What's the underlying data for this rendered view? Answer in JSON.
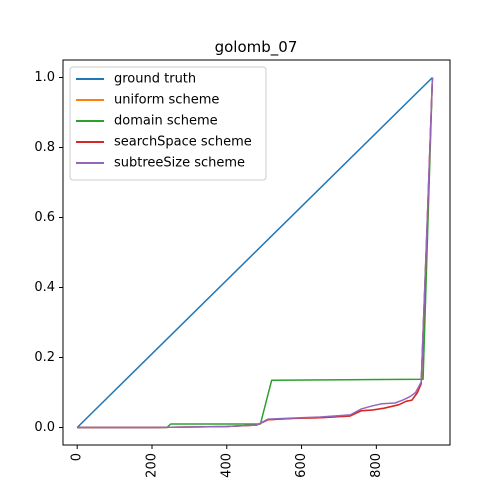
{
  "chart_data": {
    "type": "line",
    "title": "golomb_07",
    "xlabel": "",
    "ylabel": "",
    "xlim": [
      -38,
      997
    ],
    "ylim": [
      -0.05,
      1.05
    ],
    "xticks": [
      0,
      200,
      400,
      600,
      800
    ],
    "xtick_labels": [
      "0",
      "200",
      "400",
      "600",
      "800"
    ],
    "yticks": [
      0.0,
      0.2,
      0.4,
      0.6,
      0.8,
      1.0
    ],
    "ytick_labels": [
      "0.0",
      "0.2",
      "0.4",
      "0.6",
      "0.8",
      "1.0"
    ],
    "grid": false,
    "legend": "top-left",
    "series": [
      {
        "name": "ground truth",
        "color": "#1f77b4",
        "x": [
          0,
          950
        ],
        "y": [
          0.0,
          1.0
        ]
      },
      {
        "name": "uniform scheme",
        "color": "#ff7f0e",
        "x": [
          0,
          200,
          400,
          480,
          510,
          580,
          650,
          730,
          760,
          790,
          820,
          860,
          880,
          895,
          910,
          920,
          935,
          950
        ],
        "y": [
          0.0,
          0.0,
          0.003,
          0.007,
          0.022,
          0.026,
          0.028,
          0.033,
          0.048,
          0.05,
          0.055,
          0.065,
          0.075,
          0.078,
          0.1,
          0.125,
          0.55,
          1.0
        ]
      },
      {
        "name": "domain scheme",
        "color": "#2ca02c",
        "x": [
          0,
          240,
          250,
          490,
          520,
          925,
          950
        ],
        "y": [
          0.0,
          0.0,
          0.01,
          0.01,
          0.135,
          0.138,
          1.0
        ]
      },
      {
        "name": "searchSpace scheme",
        "color": "#d62728",
        "x": [
          0,
          200,
          400,
          480,
          510,
          580,
          650,
          730,
          760,
          790,
          820,
          860,
          880,
          895,
          910,
          920,
          935,
          950
        ],
        "y": [
          0.0,
          0.0,
          0.003,
          0.007,
          0.022,
          0.026,
          0.028,
          0.033,
          0.048,
          0.05,
          0.055,
          0.065,
          0.075,
          0.078,
          0.1,
          0.125,
          0.55,
          1.0
        ]
      },
      {
        "name": "subtreeSize scheme",
        "color": "#9467bd",
        "x": [
          0,
          200,
          400,
          480,
          510,
          580,
          650,
          730,
          760,
          790,
          815,
          850,
          870,
          890,
          905,
          920,
          935,
          950
        ],
        "y": [
          0.0,
          0.0,
          0.003,
          0.007,
          0.024,
          0.027,
          0.03,
          0.036,
          0.053,
          0.062,
          0.068,
          0.07,
          0.078,
          0.088,
          0.1,
          0.13,
          0.56,
          1.0
        ]
      }
    ]
  }
}
